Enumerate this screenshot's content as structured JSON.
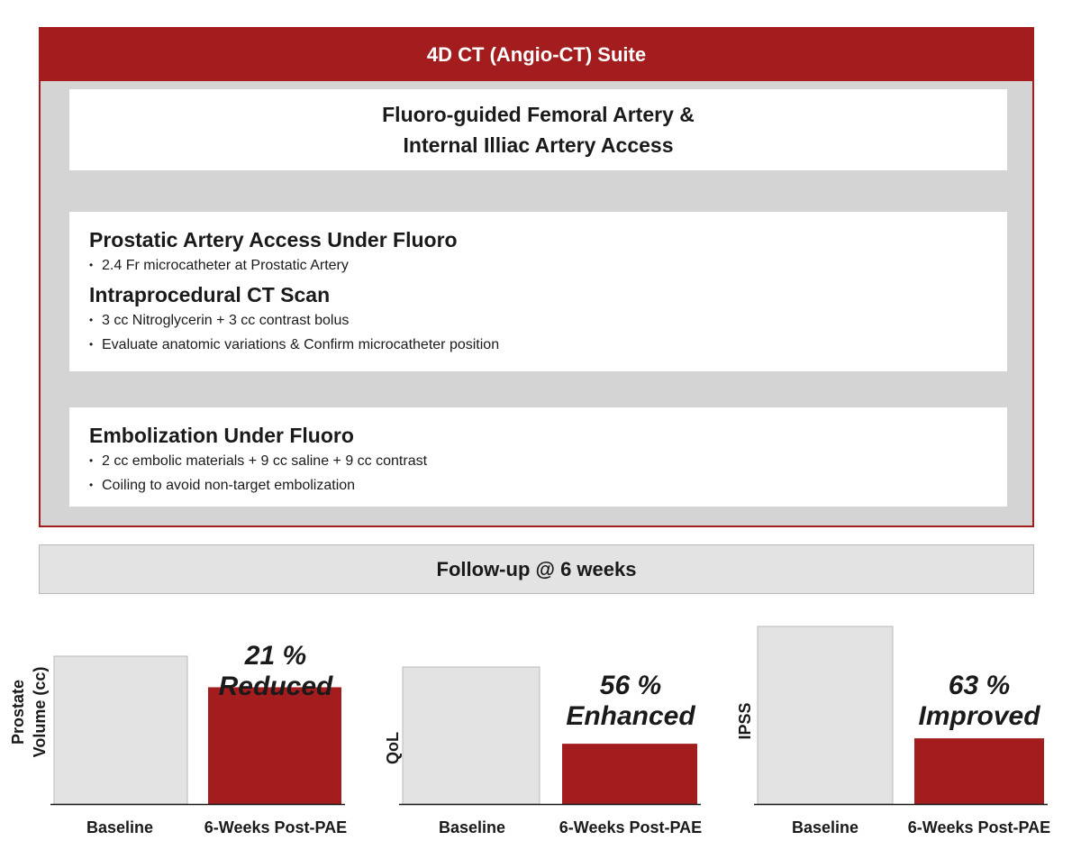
{
  "suite": {
    "title": "4D CT (Angio-CT) Suite",
    "access": {
      "line1": "Fluoro-guided Femoral Artery &",
      "line2": "Internal Illiac Artery Access"
    },
    "prostatic": {
      "title": "Prostatic Artery Access Under Fluoro",
      "bullets": [
        "2.4 Fr microcatheter at Prostatic Artery"
      ],
      "ct_title": "Intraprocedural CT Scan",
      "ct_bullets": [
        "3 cc Nitroglycerin + 3 cc contrast bolus",
        "Evaluate anatomic variations & Confirm microcatheter position"
      ]
    },
    "embolization": {
      "title": "Embolization Under Fluoro",
      "bullets": [
        "2 cc embolic materials + 9 cc saline + 9 cc contrast",
        "Coiling to avoid non-target embolization"
      ]
    }
  },
  "followup": {
    "label": "Follow-up @ 6 weeks"
  },
  "colors": {
    "brand_red": "#a31d1f",
    "baseline_gray": "#e3e3e3"
  },
  "chart_data": [
    {
      "type": "bar",
      "ylabel_lines": [
        "Prostate",
        "Volume (cc)"
      ],
      "categories": [
        "Baseline",
        "6-Weeks Post-PAE"
      ],
      "values": [
        100,
        79
      ],
      "annotation_lines": [
        "21 %",
        "Reduced"
      ]
    },
    {
      "type": "bar",
      "ylabel_lines": [
        "QoL"
      ],
      "categories": [
        "Baseline",
        "6-Weeks Post-PAE"
      ],
      "values": [
        100,
        44
      ],
      "annotation_lines": [
        "56 %",
        "Enhanced"
      ]
    },
    {
      "type": "bar",
      "ylabel_lines": [
        "IPSS"
      ],
      "categories": [
        "Baseline",
        "6-Weeks Post-PAE"
      ],
      "values": [
        100,
        37
      ],
      "annotation_lines": [
        "63 %",
        "Improved"
      ]
    }
  ]
}
